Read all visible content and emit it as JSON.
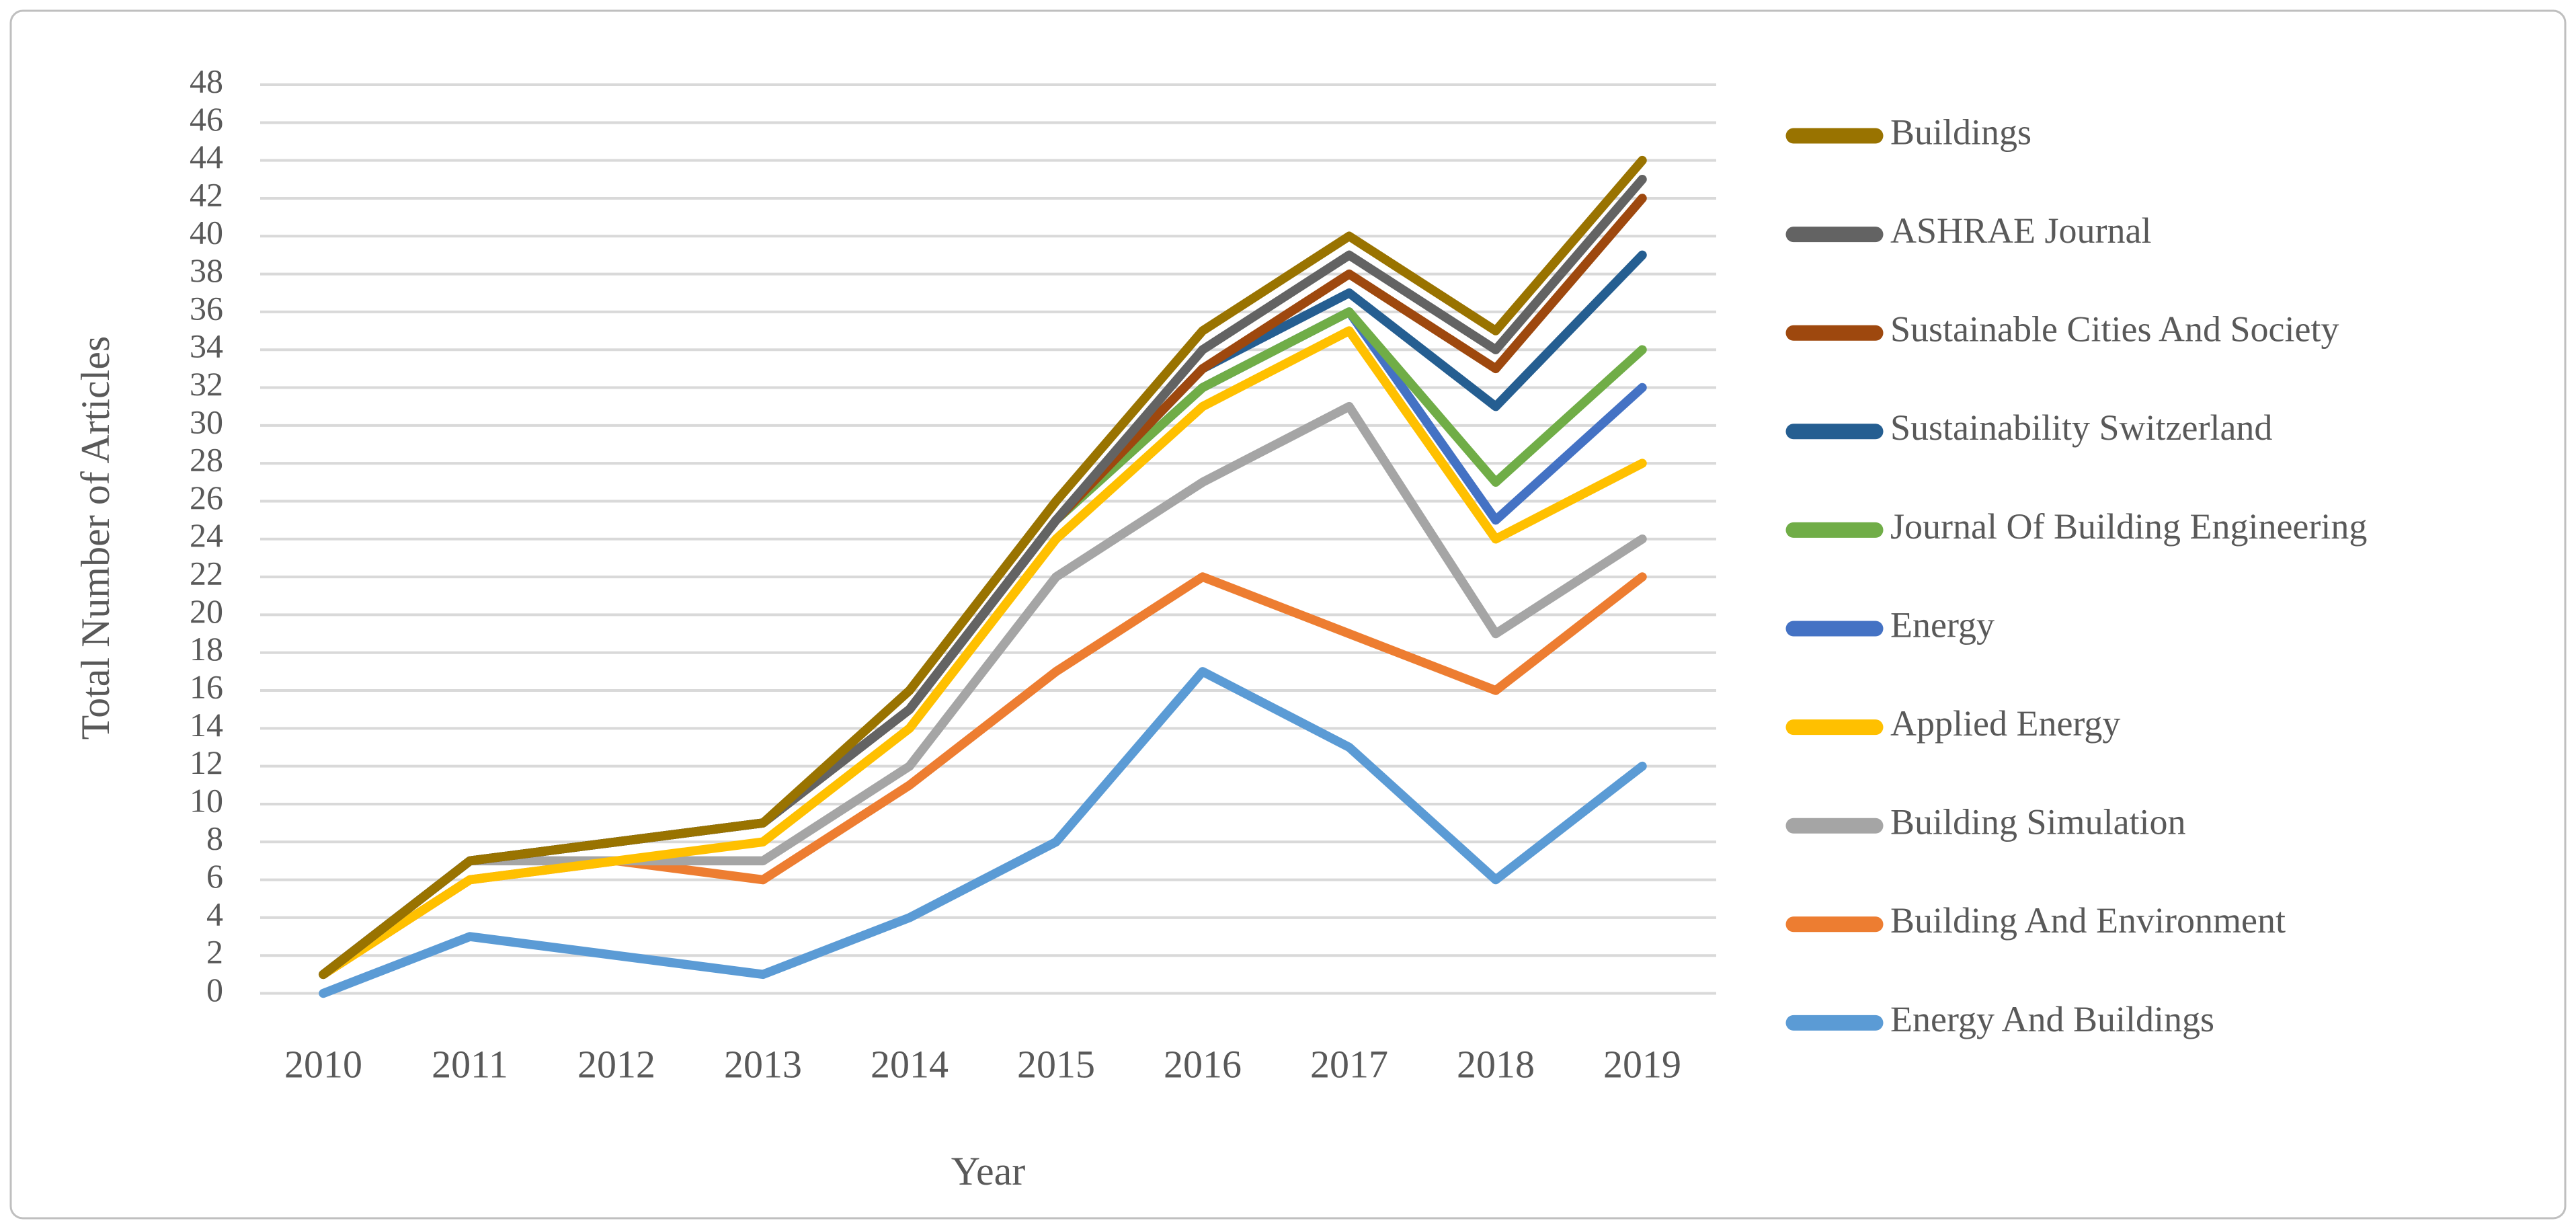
{
  "figure": {
    "background_color": "#FFFFFF",
    "border_color": "#BFBFBF",
    "gridline_color": "#D9D9D9",
    "text_color": "#595959"
  },
  "chart_data": {
    "type": "line",
    "title": "",
    "xlabel": "Year",
    "ylabel": "Total Number of Articles",
    "x": [
      "2010",
      "2011",
      "2012",
      "2013",
      "2014",
      "2015",
      "2016",
      "2017",
      "2018",
      "2019"
    ],
    "ylim": [
      0,
      48
    ],
    "ytick_step": 2,
    "grid": "horizontal",
    "legend_position": "right",
    "series": [
      {
        "name": "Buildings",
        "color": "#997300",
        "values": [
          1,
          7,
          8,
          9,
          16,
          26,
          35,
          40,
          35,
          44
        ]
      },
      {
        "name": "ASHRAE Journal",
        "color": "#636363",
        "values": [
          1,
          7,
          8,
          9,
          15,
          25,
          34,
          39,
          34,
          43
        ]
      },
      {
        "name": "Sustainable Cities And Society",
        "color": "#9E480E",
        "values": [
          1,
          7,
          8,
          9,
          15,
          25,
          33,
          38,
          33,
          42
        ]
      },
      {
        "name": "Sustainability Switzerland",
        "color": "#255E91",
        "values": [
          1,
          7,
          8,
          9,
          15,
          25,
          33,
          37,
          31,
          39
        ]
      },
      {
        "name": "Journal Of Building Engineering",
        "color": "#70AD47",
        "values": [
          1,
          7,
          8,
          9,
          15,
          25,
          32,
          36,
          27,
          34
        ]
      },
      {
        "name": "Energy",
        "color": "#4472C4",
        "values": [
          1,
          7,
          8,
          9,
          15,
          25,
          32,
          36,
          25,
          32
        ]
      },
      {
        "name": "Applied Energy",
        "color": "#FFC000",
        "values": [
          1,
          6,
          7,
          8,
          14,
          24,
          31,
          35,
          24,
          28
        ]
      },
      {
        "name": "Building Simulation",
        "color": "#A5A5A5",
        "values": [
          1,
          7,
          7,
          7,
          12,
          22,
          27,
          31,
          19,
          24
        ]
      },
      {
        "name": "Building And Environment",
        "color": "#ED7D31",
        "values": [
          1,
          6,
          7,
          6,
          11,
          17,
          22,
          19,
          16,
          22
        ]
      },
      {
        "name": "Energy And Buildings",
        "color": "#5B9BD5",
        "values": [
          0,
          3,
          2,
          1,
          4,
          8,
          17,
          13,
          6,
          12
        ]
      }
    ]
  }
}
